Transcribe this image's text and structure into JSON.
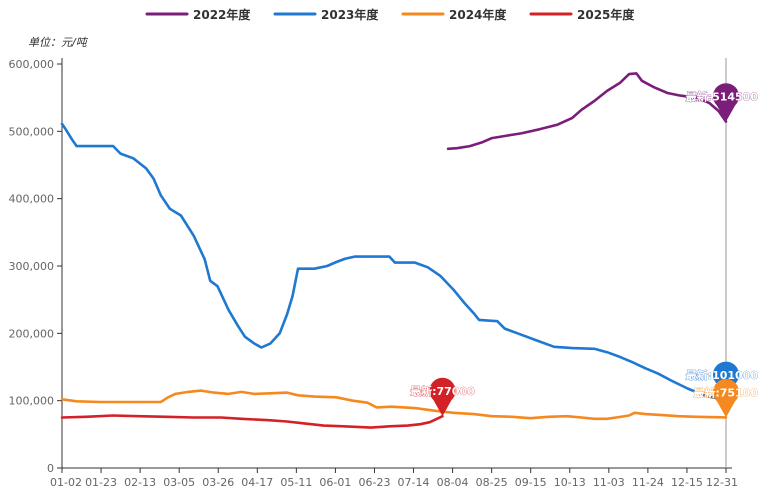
{
  "chart_data": {
    "type": "line",
    "unit_label": "单位：元/吨",
    "ylim": [
      0,
      600000
    ],
    "yticks": [
      0,
      100000,
      200000,
      300000,
      400000,
      500000,
      600000
    ],
    "ytick_labels": [
      "0",
      "100,000",
      "200,000",
      "300,000",
      "400,000",
      "500,000",
      "600,000"
    ],
    "x_range": [
      "01-02",
      "12-31"
    ],
    "xtick_labels": [
      "01-02",
      "01-23",
      "02-13",
      "03-05",
      "03-26",
      "04-17",
      "05-11",
      "06-01",
      "06-23",
      "07-14",
      "08-04",
      "08-25",
      "09-15",
      "10-13",
      "11-03",
      "11-24",
      "12-15",
      "12-31"
    ],
    "grid": false,
    "legend_position": "top",
    "series": [
      {
        "name": "2022年度",
        "color": "#7b1e7a",
        "points": [
          [
            "08-01",
            474000
          ],
          [
            "08-06",
            475000
          ],
          [
            "08-13",
            478000
          ],
          [
            "08-20",
            484000
          ],
          [
            "08-25",
            490000
          ],
          [
            "09-01",
            493000
          ],
          [
            "09-10",
            497000
          ],
          [
            "09-20",
            503000
          ],
          [
            "09-30",
            510000
          ],
          [
            "10-08",
            520000
          ],
          [
            "10-13",
            532000
          ],
          [
            "10-20",
            545000
          ],
          [
            "10-27",
            560000
          ],
          [
            "11-03",
            572000
          ],
          [
            "11-08",
            585000
          ],
          [
            "11-12",
            586000
          ],
          [
            "11-15",
            575000
          ],
          [
            "11-22",
            565000
          ],
          [
            "11-29",
            557000
          ],
          [
            "12-06",
            553000
          ],
          [
            "12-15",
            550000
          ],
          [
            "12-22",
            542000
          ],
          [
            "12-27",
            530000
          ],
          [
            "12-31",
            514500
          ]
        ],
        "marker": {
          "label": "最新:514500",
          "date": "12-31",
          "value": 514500
        }
      },
      {
        "name": "2023年度",
        "color": "#1f78d1",
        "points": [
          [
            "01-02",
            511000
          ],
          [
            "01-04",
            503000
          ],
          [
            "01-07",
            490000
          ],
          [
            "01-10",
            478000
          ],
          [
            "01-20",
            478000
          ],
          [
            "01-30",
            478000
          ],
          [
            "02-03",
            467000
          ],
          [
            "02-10",
            460000
          ],
          [
            "02-17",
            445000
          ],
          [
            "02-21",
            430000
          ],
          [
            "02-25",
            405000
          ],
          [
            "03-02",
            385000
          ],
          [
            "03-08",
            375000
          ],
          [
            "03-15",
            345000
          ],
          [
            "03-21",
            310000
          ],
          [
            "03-24",
            278000
          ],
          [
            "03-28",
            270000
          ],
          [
            "04-03",
            235000
          ],
          [
            "04-08",
            212000
          ],
          [
            "04-12",
            195000
          ],
          [
            "04-17",
            185000
          ],
          [
            "04-21",
            179000
          ],
          [
            "04-26",
            185000
          ],
          [
            "05-01",
            200000
          ],
          [
            "05-05",
            228000
          ],
          [
            "05-08",
            255000
          ],
          [
            "05-11",
            296000
          ],
          [
            "05-20",
            296000
          ],
          [
            "05-27",
            300000
          ],
          [
            "06-01",
            306000
          ],
          [
            "06-06",
            311000
          ],
          [
            "06-11",
            314000
          ],
          [
            "06-30",
            314000
          ],
          [
            "07-03",
            305000
          ],
          [
            "07-14",
            305000
          ],
          [
            "07-21",
            298000
          ],
          [
            "07-28",
            285000
          ],
          [
            "08-04",
            265000
          ],
          [
            "08-10",
            245000
          ],
          [
            "08-15",
            230000
          ],
          [
            "08-18",
            220000
          ],
          [
            "08-28",
            218000
          ],
          [
            "09-01",
            207000
          ],
          [
            "09-08",
            200000
          ],
          [
            "09-18",
            190000
          ],
          [
            "09-28",
            180000
          ],
          [
            "10-08",
            178000
          ],
          [
            "10-20",
            177000
          ],
          [
            "10-27",
            172000
          ],
          [
            "11-03",
            165000
          ],
          [
            "11-10",
            157000
          ],
          [
            "11-17",
            148000
          ],
          [
            "11-24",
            140000
          ],
          [
            "12-01",
            130000
          ],
          [
            "12-10",
            118000
          ],
          [
            "12-20",
            107000
          ],
          [
            "12-31",
            101000
          ]
        ],
        "marker": {
          "label": "最新:101000",
          "date": "12-31",
          "value": 101000
        }
      },
      {
        "name": "2024年度",
        "color": "#f5891f",
        "points": [
          [
            "01-02",
            102000
          ],
          [
            "01-10",
            99000
          ],
          [
            "01-23",
            98000
          ],
          [
            "02-13",
            98000
          ],
          [
            "02-25",
            98000
          ],
          [
            "03-01",
            105000
          ],
          [
            "03-05",
            110000
          ],
          [
            "03-12",
            113000
          ],
          [
            "03-19",
            115000
          ],
          [
            "03-26",
            112000
          ],
          [
            "04-03",
            110000
          ],
          [
            "04-10",
            113000
          ],
          [
            "04-17",
            110000
          ],
          [
            "04-26",
            111000
          ],
          [
            "05-05",
            112000
          ],
          [
            "05-11",
            108000
          ],
          [
            "05-20",
            106000
          ],
          [
            "06-01",
            105000
          ],
          [
            "06-10",
            100000
          ],
          [
            "06-18",
            97000
          ],
          [
            "06-23",
            90000
          ],
          [
            "07-01",
            91000
          ],
          [
            "07-14",
            89000
          ],
          [
            "07-25",
            85000
          ],
          [
            "08-04",
            82000
          ],
          [
            "08-15",
            80000
          ],
          [
            "08-25",
            77000
          ],
          [
            "09-05",
            76000
          ],
          [
            "09-15",
            74000
          ],
          [
            "09-25",
            76000
          ],
          [
            "10-05",
            77000
          ],
          [
            "10-13",
            75000
          ],
          [
            "10-20",
            73000
          ],
          [
            "10-27",
            73000
          ],
          [
            "11-01",
            75000
          ],
          [
            "11-08",
            78000
          ],
          [
            "11-11",
            82000
          ],
          [
            "11-17",
            80000
          ],
          [
            "11-24",
            79000
          ],
          [
            "12-05",
            77000
          ],
          [
            "12-15",
            76000
          ],
          [
            "12-31",
            75100
          ]
        ],
        "marker": {
          "label": "最新:75100",
          "date": "12-31",
          "value": 75100
        }
      },
      {
        "name": "2025年度",
        "color": "#d42027",
        "points": [
          [
            "01-02",
            75000
          ],
          [
            "01-15",
            76000
          ],
          [
            "01-30",
            78000
          ],
          [
            "02-13",
            77000
          ],
          [
            "02-28",
            76000
          ],
          [
            "03-15",
            75000
          ],
          [
            "03-30",
            75000
          ],
          [
            "04-10",
            73000
          ],
          [
            "04-25",
            71000
          ],
          [
            "05-05",
            69000
          ],
          [
            "05-15",
            66000
          ],
          [
            "05-25",
            63000
          ],
          [
            "06-05",
            62000
          ],
          [
            "06-20",
            60000
          ],
          [
            "06-30",
            62000
          ],
          [
            "07-10",
            63000
          ],
          [
            "07-17",
            65000
          ],
          [
            "07-22",
            68000
          ],
          [
            "07-26",
            73000
          ],
          [
            "07-29",
            77000
          ]
        ],
        "marker": {
          "label": "最新:77000",
          "date": "07-29",
          "value": 77000
        }
      }
    ]
  }
}
